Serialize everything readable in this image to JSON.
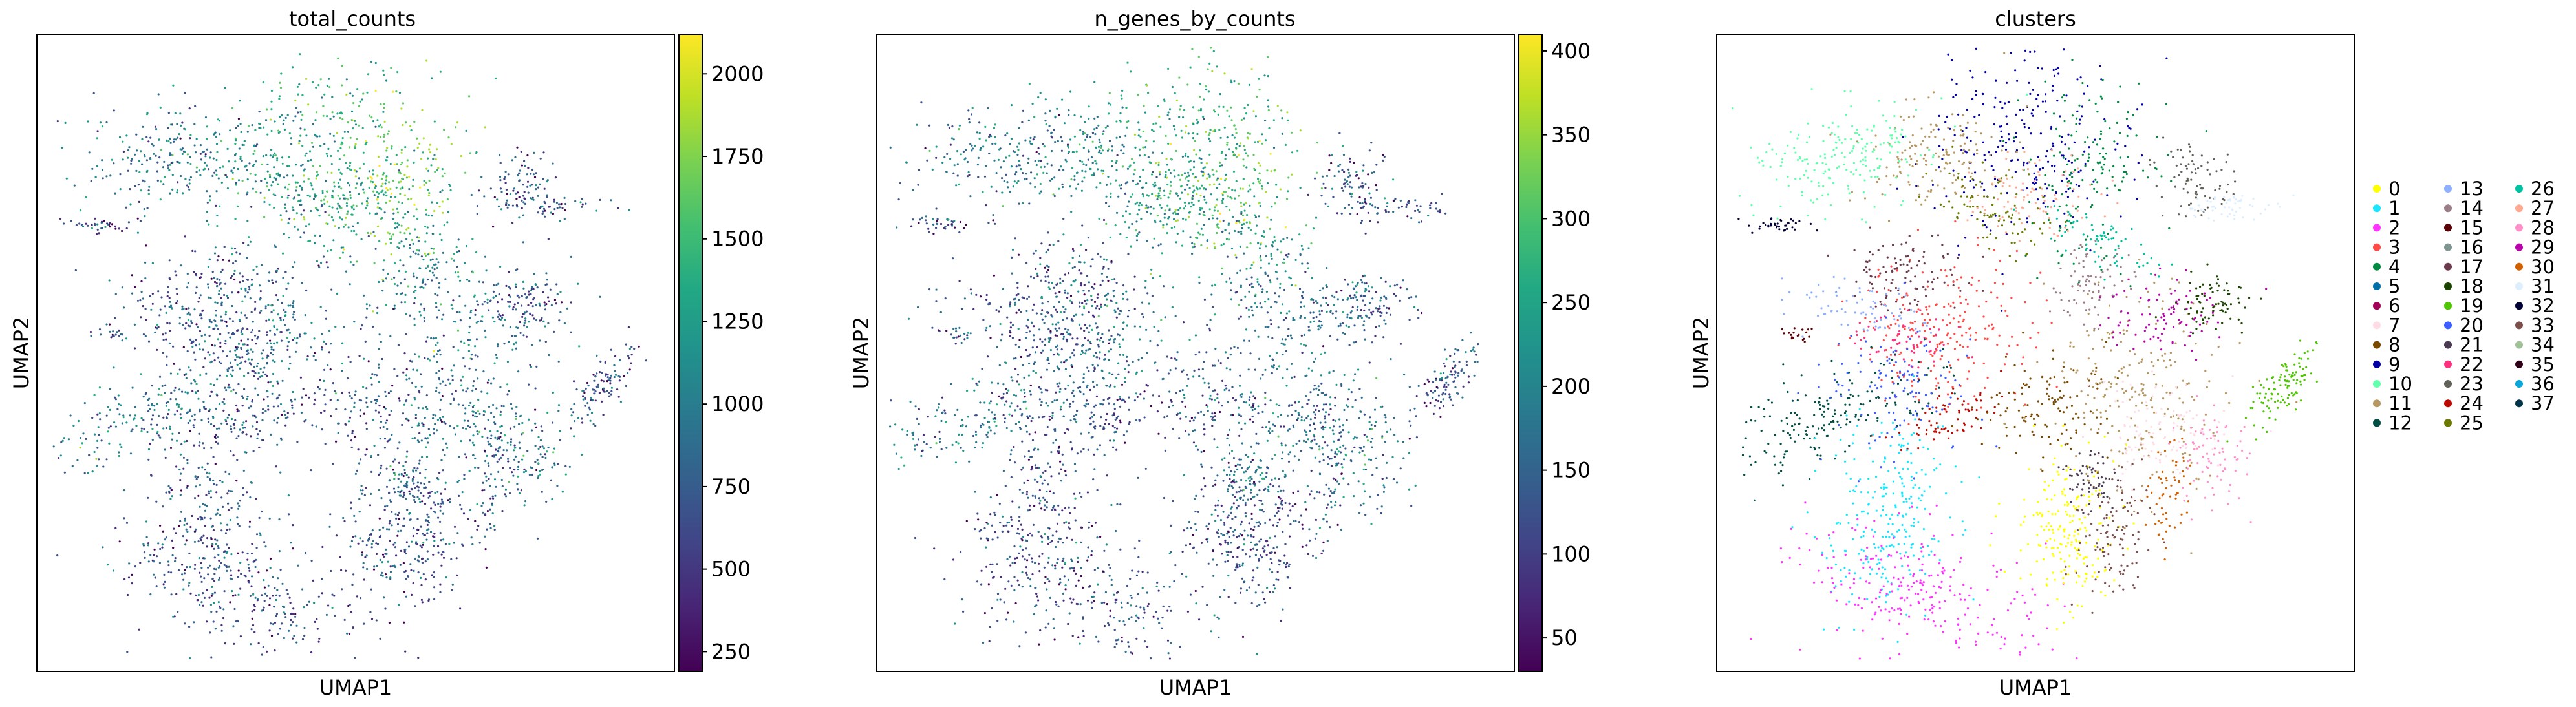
{
  "chart_data": [
    {
      "type": "scatter",
      "title": "total_counts",
      "xlabel": "UMAP1",
      "ylabel": "UMAP2",
      "colorbar": {
        "colormap": "viridis",
        "range": [
          190,
          2120
        ],
        "ticks": [
          250,
          500,
          750,
          1000,
          1250,
          1500,
          1750,
          2000
        ],
        "tick_labels": [
          "250",
          "500",
          "750",
          "1000",
          "1250",
          "1500",
          "1750",
          "2000"
        ]
      },
      "grid": false
    },
    {
      "type": "scatter",
      "title": "n_genes_by_counts",
      "xlabel": "UMAP1",
      "ylabel": "UMAP2",
      "colorbar": {
        "colormap": "viridis",
        "range": [
          30,
          410
        ],
        "ticks": [
          50,
          100,
          150,
          200,
          250,
          300,
          350,
          400
        ],
        "tick_labels": [
          "50",
          "100",
          "150",
          "200",
          "250",
          "300",
          "350",
          "400"
        ]
      },
      "grid": false
    },
    {
      "type": "scatter",
      "title": "clusters",
      "xlabel": "UMAP1",
      "ylabel": "UMAP2",
      "legend": {
        "placement": "right",
        "columns": 3,
        "entries": [
          {
            "label": "0",
            "color": "#ffff00"
          },
          {
            "label": "1",
            "color": "#1ce6ff"
          },
          {
            "label": "2",
            "color": "#ff34ff"
          },
          {
            "label": "3",
            "color": "#ff4a46"
          },
          {
            "label": "4",
            "color": "#008941"
          },
          {
            "label": "5",
            "color": "#006fa6"
          },
          {
            "label": "6",
            "color": "#a30059"
          },
          {
            "label": "7",
            "color": "#ffdbe5"
          },
          {
            "label": "8",
            "color": "#7a4900"
          },
          {
            "label": "9",
            "color": "#0000a6"
          },
          {
            "label": "10",
            "color": "#63ffac"
          },
          {
            "label": "11",
            "color": "#b79762"
          },
          {
            "label": "12",
            "color": "#004d43"
          },
          {
            "label": "13",
            "color": "#8fb0ff"
          },
          {
            "label": "14",
            "color": "#997d87"
          },
          {
            "label": "15",
            "color": "#5a0007"
          },
          {
            "label": "16",
            "color": "#809693"
          },
          {
            "label": "17",
            "color": "#6a3a4c"
          },
          {
            "label": "18",
            "color": "#1b4400"
          },
          {
            "label": "19",
            "color": "#4fc601"
          },
          {
            "label": "20",
            "color": "#3b5dff"
          },
          {
            "label": "21",
            "color": "#4a3b53"
          },
          {
            "label": "22",
            "color": "#ff2f80"
          },
          {
            "label": "23",
            "color": "#61615a"
          },
          {
            "label": "24",
            "color": "#ba0900"
          },
          {
            "label": "25",
            "color": "#6b7900"
          },
          {
            "label": "26",
            "color": "#00c2a0"
          },
          {
            "label": "27",
            "color": "#ffaa92"
          },
          {
            "label": "28",
            "color": "#ff90c9"
          },
          {
            "label": "29",
            "color": "#b903aa"
          },
          {
            "label": "30",
            "color": "#d16100"
          },
          {
            "label": "31",
            "color": "#ddefff"
          },
          {
            "label": "32",
            "color": "#000035"
          },
          {
            "label": "33",
            "color": "#7b4f4b"
          },
          {
            "label": "34",
            "color": "#a1c299"
          },
          {
            "label": "35",
            "color": "#300018"
          },
          {
            "label": "36",
            "color": "#0aa6d8"
          },
          {
            "label": "37",
            "color": "#013349"
          }
        ]
      },
      "grid": false
    }
  ]
}
